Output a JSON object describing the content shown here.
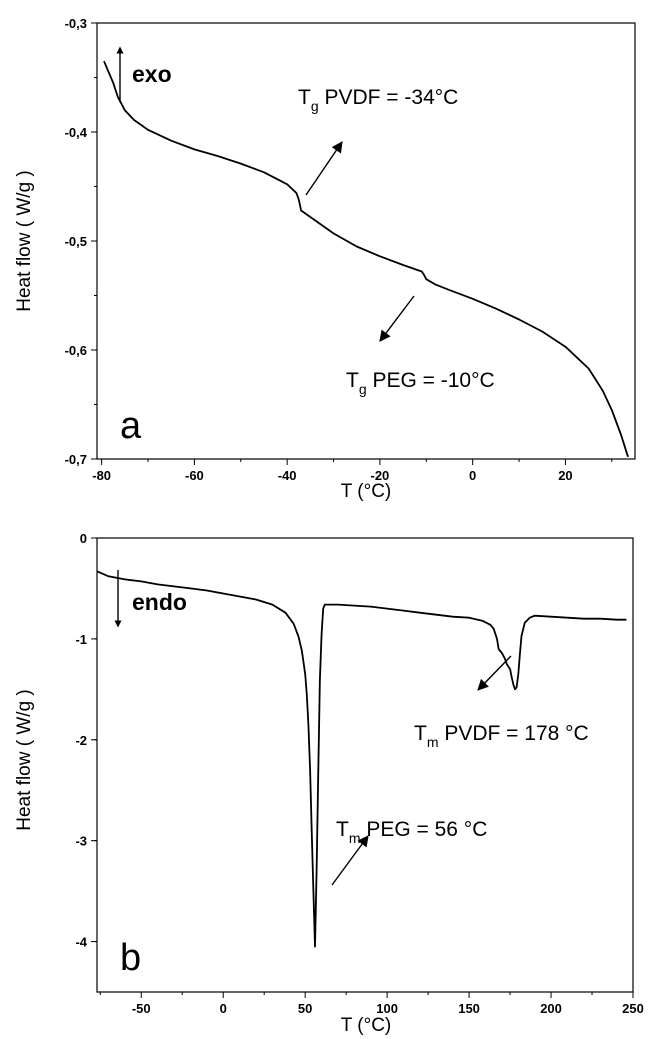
{
  "chart_data": [
    {
      "type": "line",
      "panel": "a",
      "xlabel": "T (°C)",
      "ylabel": "Heat flow ( W/g )",
      "xlim": [
        -81,
        35
      ],
      "ylim": [
        -0.7,
        -0.3
      ],
      "xticks": [
        -80,
        -60,
        -40,
        -20,
        0,
        20
      ],
      "xtick_labels": [
        "-80",
        "-60",
        "-40",
        "-20",
        "0",
        "20"
      ],
      "yticks": [
        -0.3,
        -0.4,
        -0.5,
        -0.6,
        -0.7
      ],
      "ytick_labels": [
        "-0,3",
        "-0,4",
        "-0,5",
        "-0,6",
        "-0,7"
      ],
      "direction_label": "exo",
      "direction": "up",
      "annotations": [
        {
          "main": "T",
          "sub": "g",
          "text": " PVDF = -34°C",
          "x": -37,
          "y": -0.472
        },
        {
          "main": "T",
          "sub": "g",
          "text": " PEG = -10°C",
          "x": -10,
          "y": -0.532
        }
      ],
      "series": [
        {
          "x": [
            -79.5,
            -78.5,
            -77.5,
            -76.5,
            -75,
            -73,
            -70,
            -65,
            -60,
            -55,
            -50,
            -45,
            -40,
            -38,
            -37.5,
            -37,
            -35,
            -30,
            -25,
            -20,
            -15,
            -11,
            -10.5,
            -10,
            -8,
            -5,
            0,
            5,
            10,
            15,
            20,
            25,
            28,
            30,
            32,
            33.5
          ],
          "y": [
            -0.335,
            -0.345,
            -0.355,
            -0.368,
            -0.38,
            -0.389,
            -0.398,
            -0.408,
            -0.416,
            -0.422,
            -0.429,
            -0.437,
            -0.448,
            -0.456,
            -0.462,
            -0.472,
            -0.478,
            -0.493,
            -0.505,
            -0.514,
            -0.522,
            -0.528,
            -0.531,
            -0.535,
            -0.54,
            -0.545,
            -0.553,
            -0.562,
            -0.572,
            -0.583,
            -0.597,
            -0.617,
            -0.637,
            -0.655,
            -0.678,
            -0.698
          ]
        }
      ]
    },
    {
      "type": "line",
      "panel": "b",
      "xlabel": "T (°C)",
      "ylabel": "Heat flow ( W/g )",
      "xlim": [
        -77,
        250
      ],
      "ylim": [
        -4.5,
        0
      ],
      "xticks": [
        -50,
        0,
        50,
        100,
        150,
        200,
        250
      ],
      "xtick_labels": [
        "-50",
        "0",
        "50",
        "100",
        "150",
        "200",
        "250"
      ],
      "yticks": [
        0,
        -1,
        -2,
        -3,
        -4
      ],
      "ytick_labels": [
        "0",
        "-1",
        "-2",
        "-3",
        "-4"
      ],
      "direction_label": "endo",
      "direction": "down",
      "annotations": [
        {
          "main": "T",
          "sub": "m",
          "text": " PVDF = 178 °C",
          "x": 178,
          "y": -1.5
        },
        {
          "main": "T",
          "sub": "m",
          "text": " PEG = 56 °C",
          "x": 56,
          "y": -4.05
        }
      ],
      "series": [
        {
          "x": [
            -77,
            -70,
            -60,
            -50,
            -40,
            -30,
            -20,
            -10,
            0,
            10,
            20,
            30,
            38,
            43,
            46,
            48,
            50,
            51,
            52,
            53,
            54,
            55,
            56,
            57,
            58,
            59,
            60,
            61,
            62,
            70,
            80,
            90,
            100,
            110,
            120,
            130,
            140,
            150,
            158,
            163,
            165,
            167,
            168,
            170,
            172,
            173,
            175,
            176,
            177,
            178,
            179,
            180,
            181,
            182,
            184,
            187,
            190,
            200,
            210,
            220,
            230,
            240,
            246
          ],
          "y": [
            -0.33,
            -0.38,
            -0.41,
            -0.43,
            -0.46,
            -0.48,
            -0.5,
            -0.52,
            -0.55,
            -0.58,
            -0.61,
            -0.66,
            -0.74,
            -0.85,
            -0.98,
            -1.12,
            -1.35,
            -1.55,
            -1.85,
            -2.3,
            -2.9,
            -3.5,
            -4.05,
            -3.3,
            -2.3,
            -1.4,
            -0.95,
            -0.7,
            -0.66,
            -0.66,
            -0.67,
            -0.68,
            -0.7,
            -0.72,
            -0.74,
            -0.76,
            -0.78,
            -0.79,
            -0.82,
            -0.86,
            -0.9,
            -1.0,
            -1.1,
            -1.14,
            -1.2,
            -1.25,
            -1.3,
            -1.38,
            -1.45,
            -1.5,
            -1.48,
            -1.35,
            -1.15,
            -0.97,
            -0.84,
            -0.79,
            -0.77,
            -0.78,
            -0.79,
            -0.8,
            -0.8,
            -0.81,
            -0.81
          ]
        }
      ]
    }
  ]
}
